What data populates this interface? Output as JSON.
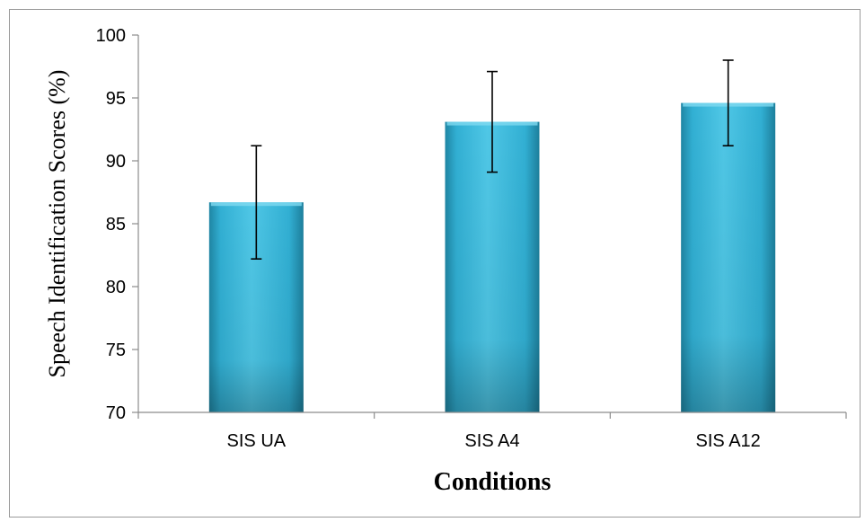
{
  "chart_data": {
    "type": "bar",
    "categories": [
      "SIS UA",
      "SIS A4",
      "SIS A12"
    ],
    "values": [
      86.7,
      93.1,
      94.6
    ],
    "error": [
      4.5,
      4.0,
      3.4
    ],
    "xlabel": "Conditions",
    "ylabel": "Speech Identification Scores (%)",
    "ylim": [
      70,
      100
    ],
    "yticks": [
      70,
      75,
      80,
      85,
      90,
      95,
      100
    ],
    "grid": false,
    "colors": {
      "bar_light": "#4fc7e6",
      "bar_mid": "#31afd3",
      "bar_dark": "#1d7f9c"
    }
  }
}
